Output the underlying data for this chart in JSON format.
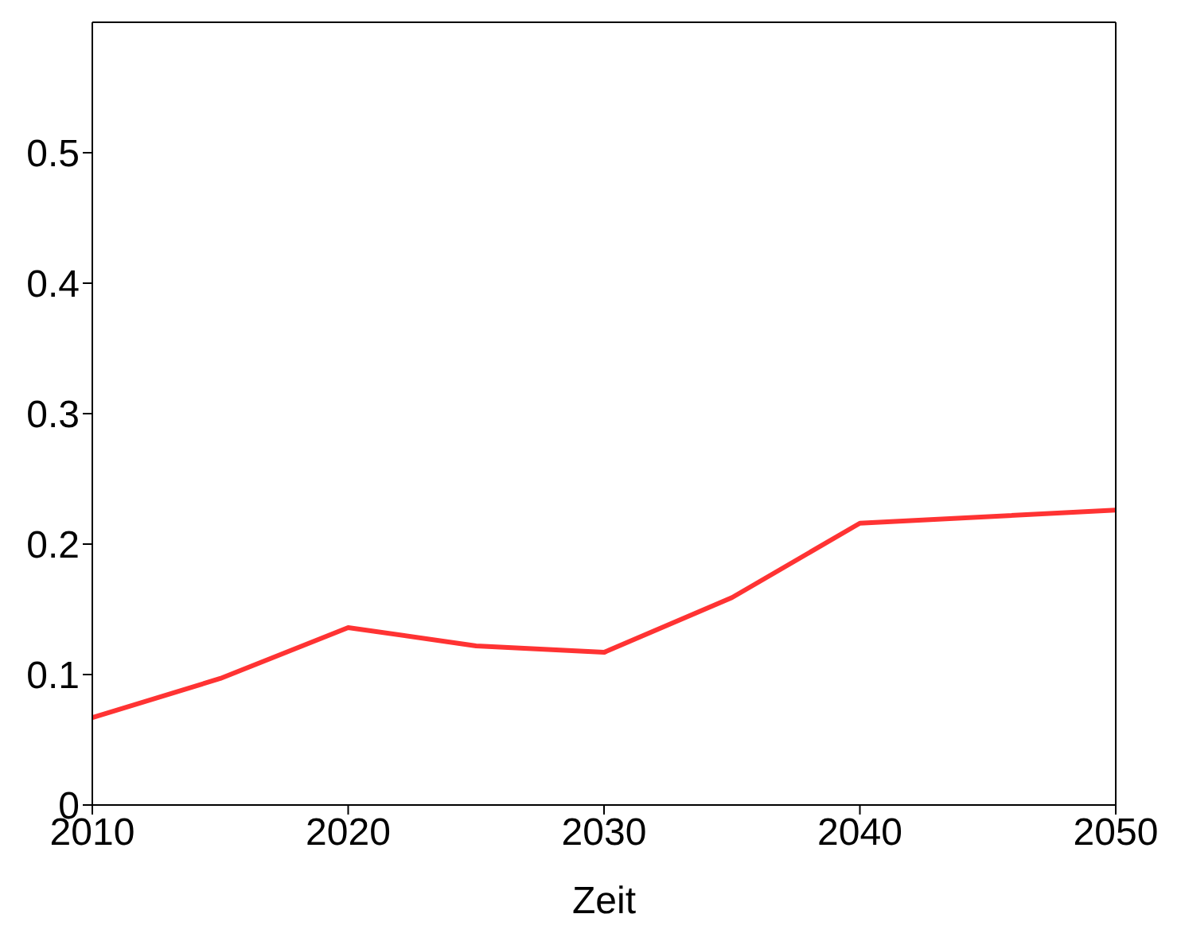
{
  "chart_data": {
    "type": "line",
    "xlabel": "Zeit",
    "x": [
      2010,
      2015,
      2020,
      2025,
      2030,
      2035,
      2040,
      2050
    ],
    "series": [
      {
        "color": "#ff3333",
        "values": [
          0.067,
          0.097,
          0.136,
          0.122,
          0.117,
          0.159,
          0.216,
          0.226
        ]
      }
    ],
    "xlim": [
      2010,
      2050
    ],
    "xticks": [
      2010,
      2020,
      2030,
      2040,
      2050
    ],
    "ylim": [
      0,
      0.6
    ],
    "yticks": [
      0,
      0.1,
      0.2,
      0.3,
      0.4,
      0.5
    ],
    "grid": false,
    "legend": false,
    "marker": "none",
    "line_style": "solid"
  }
}
